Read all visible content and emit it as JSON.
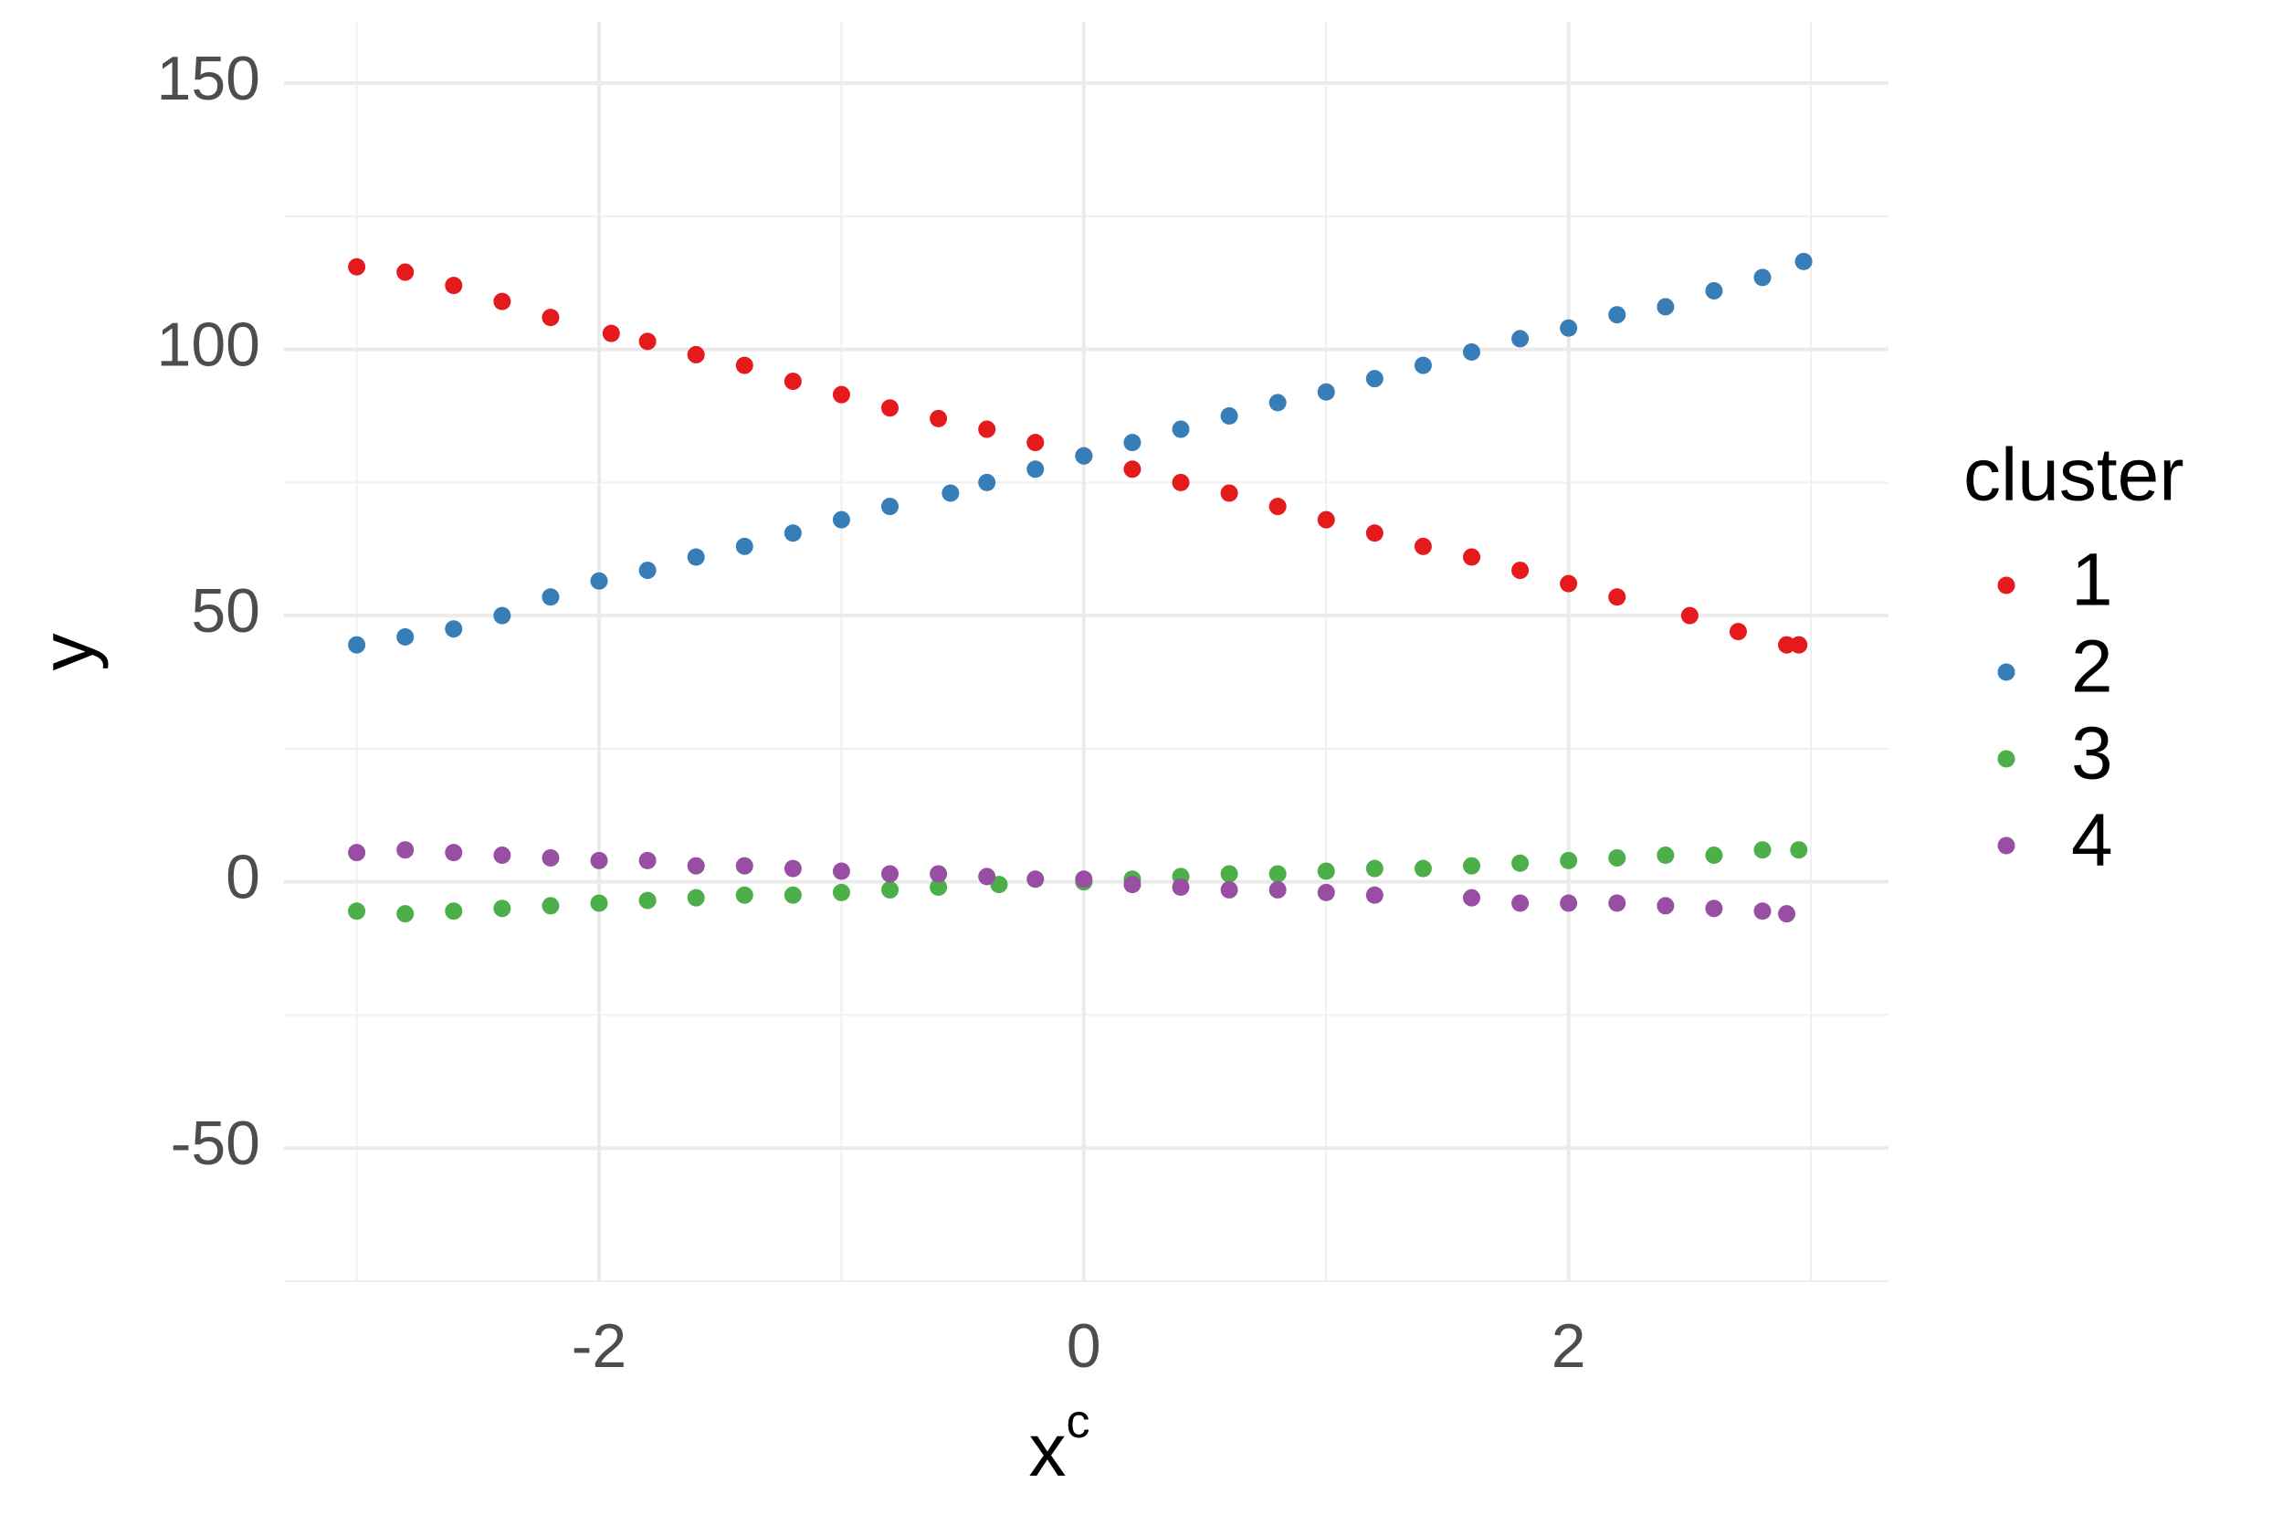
{
  "chart_data": {
    "type": "scatter",
    "xlabel": "x",
    "xlabel_superscript": "c",
    "ylabel": "y",
    "legend_title": "cluster",
    "legend_position": "right",
    "grid": true,
    "xlim": [
      -3.3,
      3.32
    ],
    "ylim": [
      -75,
      161.5
    ],
    "xticks": [
      -2,
      0,
      2
    ],
    "yticks": [
      -50,
      0,
      50,
      100,
      150
    ],
    "x_minor_gridlines": [
      -3,
      -1,
      1,
      3
    ],
    "y_minor_gridlines": [
      -75,
      -25,
      25,
      75,
      125
    ],
    "series": [
      {
        "name": "1",
        "color": "#e41a1c",
        "x": [
          -3,
          -2.8,
          -2.6,
          -2.4,
          -2.2,
          -1.95,
          -1.8,
          -1.6,
          -1.4,
          -1.2,
          -1,
          -0.8,
          -0.6,
          -0.4,
          -0.2,
          0,
          0.2,
          0.4,
          0.6,
          0.8,
          1,
          1.2,
          1.4,
          1.6,
          1.8,
          2,
          2.2,
          2.5,
          2.7,
          2.9,
          2.95
        ],
        "values": [
          115.5,
          114.5,
          112,
          109,
          106,
          103,
          101.5,
          99,
          97,
          94,
          91.5,
          89,
          87,
          85,
          82.5,
          80,
          77.5,
          75,
          73,
          70.5,
          68,
          65.5,
          63,
          61,
          58.5,
          56,
          53.5,
          50,
          47,
          44.5,
          44.5
        ]
      },
      {
        "name": "2",
        "color": "#377eb8",
        "x": [
          -3,
          -2.8,
          -2.6,
          -2.4,
          -2.2,
          -2,
          -1.8,
          -1.6,
          -1.4,
          -1.2,
          -1,
          -0.8,
          -0.55,
          -0.4,
          -0.2,
          0,
          0.2,
          0.4,
          0.6,
          0.8,
          1,
          1.2,
          1.4,
          1.6,
          1.8,
          2,
          2.2,
          2.4,
          2.6,
          2.8,
          2.97
        ],
        "values": [
          44.5,
          46,
          47.5,
          50,
          53.5,
          56.5,
          58.5,
          61,
          63,
          65.5,
          68,
          70.5,
          73,
          75,
          77.5,
          80,
          82.5,
          85,
          87.5,
          90,
          92,
          94.5,
          97,
          99.5,
          102,
          104,
          106.5,
          108,
          111,
          113.5,
          116.5
        ]
      },
      {
        "name": "3",
        "color": "#4daf4a",
        "x": [
          -3,
          -2.8,
          -2.6,
          -2.4,
          -2.2,
          -2,
          -1.8,
          -1.6,
          -1.4,
          -1.2,
          -1,
          -0.8,
          -0.6,
          -0.35,
          0,
          0.2,
          0.4,
          0.6,
          0.8,
          1,
          1.2,
          1.4,
          1.6,
          1.8,
          2,
          2.2,
          2.4,
          2.6,
          2.8,
          2.95
        ],
        "values": [
          -5.5,
          -6,
          -5.5,
          -5,
          -4.5,
          -4,
          -3.5,
          -3,
          -2.5,
          -2.5,
          -2,
          -1.5,
          -1,
          -0.5,
          0,
          0.5,
          1,
          1.5,
          1.5,
          2,
          2.5,
          2.5,
          3,
          3.5,
          4,
          4.5,
          5,
          5,
          6,
          6
        ]
      },
      {
        "name": "4",
        "color": "#984ea3",
        "x": [
          -3,
          -2.8,
          -2.6,
          -2.4,
          -2.2,
          -2,
          -1.8,
          -1.6,
          -1.4,
          -1.2,
          -1,
          -0.8,
          -0.6,
          -0.4,
          -0.2,
          0,
          0.2,
          0.4,
          0.6,
          0.8,
          1,
          1.2,
          1.6,
          1.8,
          2,
          2.2,
          2.4,
          2.6,
          2.8,
          2.9
        ],
        "values": [
          5.5,
          6,
          5.5,
          5,
          4.5,
          4,
          4,
          3,
          3,
          2.5,
          2,
          1.5,
          1.5,
          1,
          0.5,
          0.5,
          -0.5,
          -1,
          -1.5,
          -1.5,
          -2,
          -2.5,
          -3,
          -4,
          -4,
          -4,
          -4.5,
          -5,
          -5.5,
          -6
        ]
      }
    ]
  }
}
